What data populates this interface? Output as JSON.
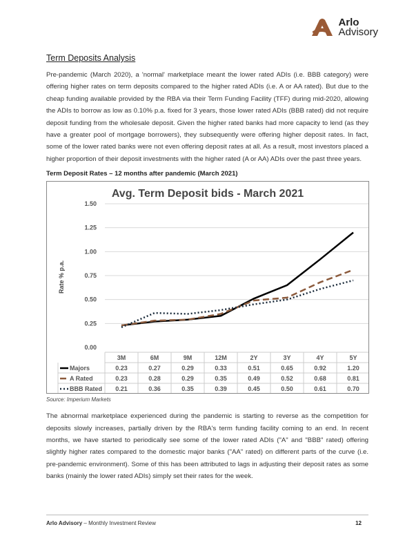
{
  "header": {
    "logo_line1": "Arlo",
    "logo_line2": "Advisory",
    "logo_color": "#9a5a36"
  },
  "title": "Term Deposits Analysis",
  "paragraph1": "Pre-pandemic (March 2020), a 'normal' marketplace meant the lower rated ADIs (i.e. BBB category) were offering higher rates on term deposits compared to the higher rated ADIs (i.e. A or AA rated). But due to the cheap funding available provided by the RBA via their Term Funding Facility (TFF) during mid-2020, allowing the ADIs to borrow as low as 0.10% p.a. fixed for 3 years, those lower rated ADIs (BBB rated) did not require deposit funding from the wholesale deposit. Given the higher rated banks had more capacity to lend (as they have a greater pool of mortgage borrowers), they subsequently were offering higher deposit rates. In fact, some of the lower rated banks were not even offering deposit rates at all. As a result, most investors placed a higher proportion of their deposit investments with the higher rated (A or AA) ADIs over the past three years.",
  "figure_caption": "Term Deposit Rates – 12 months after pandemic (March 2021)",
  "chart_data": {
    "type": "line",
    "title": "Avg. Term Deposit bids - March 2021",
    "ylabel": "Rate % p.a.",
    "xlabel": "",
    "ylim": [
      0,
      1.5
    ],
    "yticks": [
      "0.00",
      "0.25",
      "0.50",
      "0.75",
      "1.00",
      "1.25",
      "1.50"
    ],
    "grid": true,
    "legend": "data-table",
    "categories": [
      "3M",
      "6M",
      "9M",
      "12M",
      "2Y",
      "3Y",
      "4Y",
      "5Y"
    ],
    "series": [
      {
        "name": "Majors",
        "values": [
          0.23,
          0.27,
          0.29,
          0.33,
          0.51,
          0.65,
          0.92,
          1.2
        ],
        "color": "#000000",
        "style": "solid"
      },
      {
        "name": "A Rated",
        "values": [
          0.23,
          0.28,
          0.29,
          0.35,
          0.49,
          0.52,
          0.68,
          0.81
        ],
        "color": "#8b5a3c",
        "style": "dashed"
      },
      {
        "name": "BBB Rated",
        "values": [
          0.21,
          0.36,
          0.35,
          0.39,
          0.45,
          0.5,
          0.61,
          0.7
        ],
        "color": "#1a2a3a",
        "style": "dotted"
      }
    ]
  },
  "source": "Source: Imperium Markets",
  "paragraph2": "The abnormal marketplace experienced during the pandemic is starting to reverse as the competition for deposits slowly increases, partially driven by the RBA's term funding facility coming to an end. In recent months, we have started to periodically see some of the lower rated ADIs (\"A\" and \"BBB\" rated) offering slightly higher rates compared to the domestic major banks (\"AA\" rated) on different parts of the curve (i.e. pre-pandemic environment). Some of this has been attributed to lags in adjusting their deposit rates as some banks (mainly the lower rated ADIs) simply set their rates for the week.",
  "footer": {
    "brand": "Arlo Advisory",
    "publication": " – Monthly Investment Review",
    "page_number": "12"
  }
}
